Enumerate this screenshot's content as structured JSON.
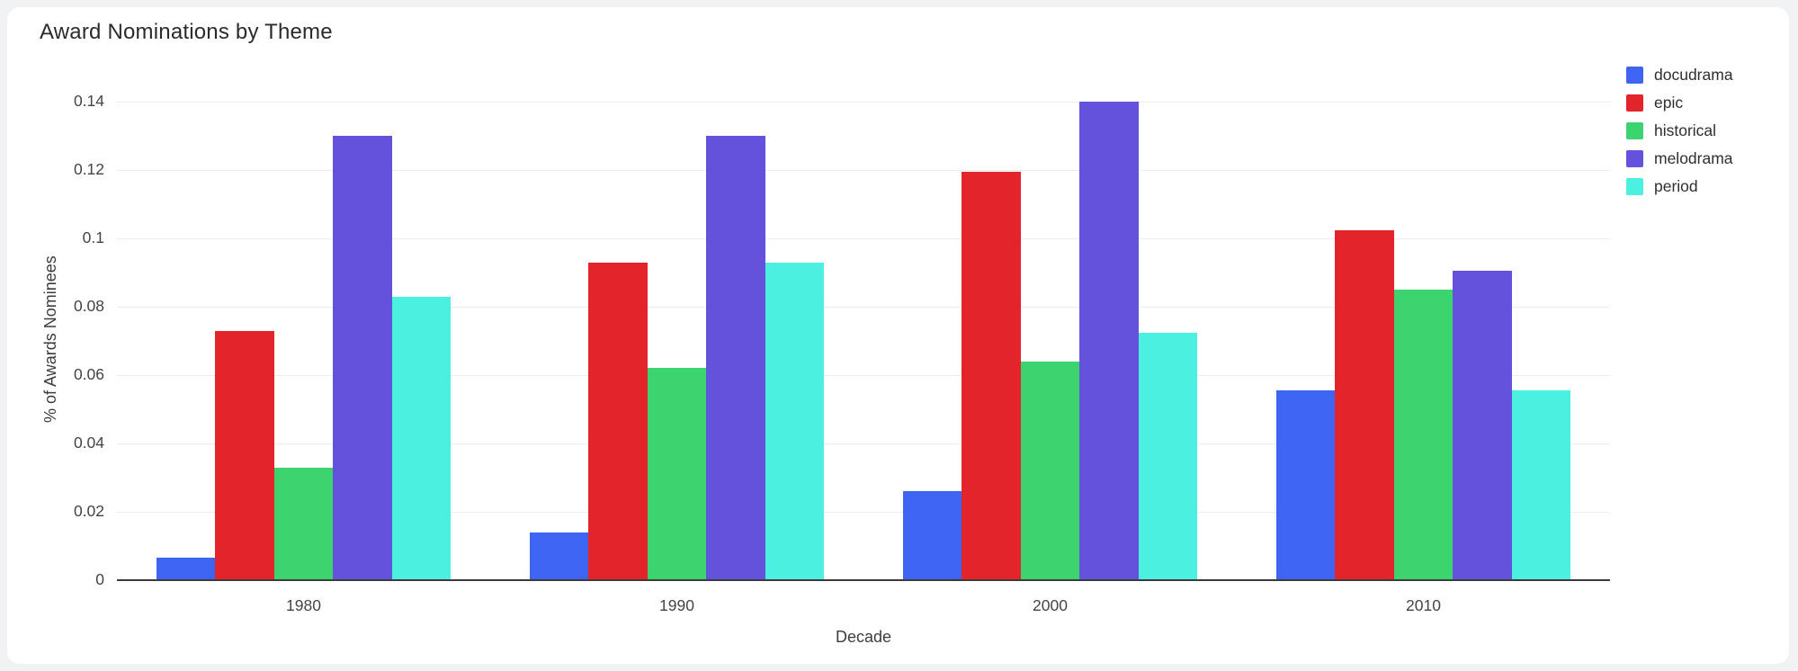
{
  "chart_data": {
    "type": "bar",
    "title": "Award Nominations by Theme",
    "xlabel": "Decade",
    "ylabel": "% of Awards Nominees",
    "categories": [
      "1980",
      "1990",
      "2000",
      "2010"
    ],
    "series": [
      {
        "name": "docudrama",
        "color": "#3D65F1",
        "values": [
          0.0065,
          0.014,
          0.026,
          0.0555
        ]
      },
      {
        "name": "epic",
        "color": "#E3242B",
        "values": [
          0.073,
          0.093,
          0.1195,
          0.1025
        ]
      },
      {
        "name": "historical",
        "color": "#3BD46F",
        "values": [
          0.033,
          0.062,
          0.064,
          0.085
        ]
      },
      {
        "name": "melodrama",
        "color": "#6353DC",
        "values": [
          0.13,
          0.13,
          0.14,
          0.0905
        ]
      },
      {
        "name": "period",
        "color": "#4BF0E0",
        "values": [
          0.083,
          0.093,
          0.0725,
          0.0555
        ]
      }
    ],
    "ylim": [
      0,
      0.1475
    ],
    "yticks": [
      0,
      0.02,
      0.04,
      0.06,
      0.08,
      0.1,
      0.12,
      0.14
    ],
    "ytick_labels": [
      "0",
      "0.02",
      "0.04",
      "0.06",
      "0.08",
      "0.1",
      "0.12",
      "0.14"
    ],
    "xtick_labels": [
      "1980",
      "1990",
      "2000",
      "2010"
    ],
    "grid": true,
    "legend_position": "right-top",
    "grid_color": "#ECECEC",
    "axis_line_color": "#3B3B3B",
    "background_color": "#FFFFFF",
    "outer_background_color": "#F1F2F3",
    "title_color": "#2B2B2B",
    "tick_label_color": "#444444"
  }
}
